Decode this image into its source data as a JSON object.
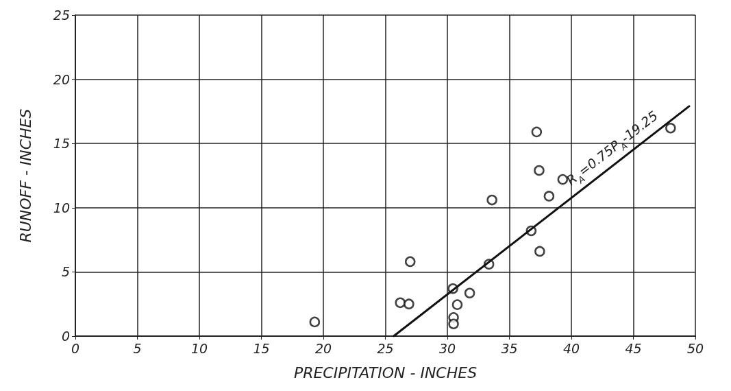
{
  "chart_data": {
    "type": "scatter",
    "xlabel": "PRECIPITATION - INCHES",
    "ylabel": "RUNOFF - INCHES",
    "xlim": [
      0,
      50
    ],
    "xticks": [
      0,
      5,
      10,
      15,
      20,
      25,
      30,
      35,
      40,
      45,
      50
    ],
    "ylim": [
      0,
      25
    ],
    "yticks": [
      0,
      5,
      10,
      15,
      20,
      25
    ],
    "grid": true,
    "series": [
      {
        "color": "#111111",
        "marker": "circle",
        "x": [
          19.3,
          26.2,
          26.9,
          27.0,
          30.45,
          30.8,
          30.5,
          30.5,
          31.8,
          33.35,
          33.6,
          36.76,
          37.45,
          37.2,
          37.4,
          38.2,
          39.3,
          48.0
        ],
        "values": [
          1.1,
          2.6,
          2.5,
          5.8,
          3.7,
          2.45,
          1.45,
          0.95,
          3.35,
          5.6,
          10.6,
          8.2,
          6.6,
          15.9,
          12.9,
          10.9,
          12.2,
          16.2
        ]
      },
      {
        "type": "line",
        "color": "#111111",
        "marker": "none",
        "line_style": "solid",
        "x": [
          25.67,
          49.5
        ],
        "values": [
          0,
          17.9
        ]
      }
    ],
    "annotations": [
      {
        "text": "R$_{A}$=0.75P$_{A}$-19.25",
        "x": 44,
        "y": 13.75
      }
    ]
  }
}
